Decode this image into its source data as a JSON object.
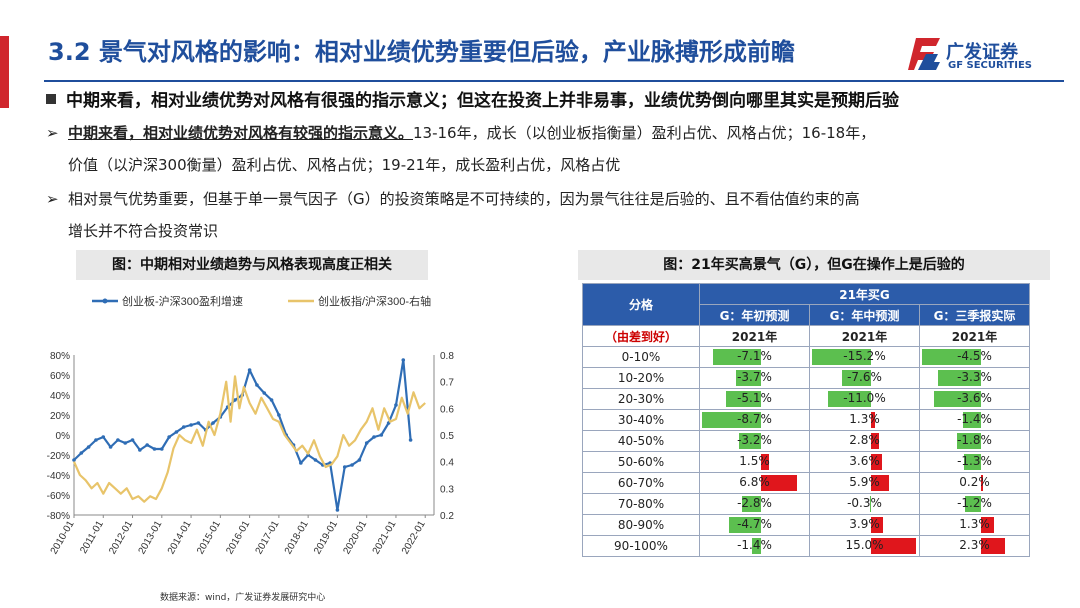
{
  "title": "3.2 景气对风格的影响：相对业绩优势重要但后验，产业脉搏形成前瞻",
  "logo": {
    "cn": "广发证券",
    "en": "GF SECURITIES"
  },
  "headline": "中期来看，相对业绩优势对风格有很强的指示意义；但这在投资上并非易事，业绩优势倒向哪里其实是预期后验",
  "point1": {
    "bold": "中期来看，相对业绩优势对风格有较强的指示意义。",
    "text1": "13-16年，成长（以创业板指衡量）盈利占优、风格占优；16-18年，",
    "text2": "价值（以沪深300衡量）盈利占优、风格占优；19-21年，成长盈利占优，风格占优"
  },
  "point2": {
    "text1": "相对景气优势重要，但基于单一景气因子（G）的投资策略是不可持续的，因为景气往往是后验的、且不看估值约束的高",
    "text2": "增长并不符合投资常识"
  },
  "left_caption": "图：中期相对业绩趋势与风格表现高度正相关",
  "right_caption": "图：21年买高景气（G），但G在操作上是后验的",
  "source": "数据来源：wind，广发证券发展研究中心",
  "colors": {
    "blue": "#2f6db5",
    "gold": "#e8c46a",
    "green": "#5cbf4f",
    "red": "#e0161c",
    "header": "#2c5caa"
  },
  "chart_data": [
    {
      "type": "line",
      "title": "",
      "legend_position": "top",
      "x_ticks": [
        "2010-01",
        "2011-01",
        "2012-01",
        "2013-01",
        "2014-01",
        "2015-01",
        "2016-01",
        "2017-01",
        "2018-01",
        "2019-01",
        "2020-01",
        "2021-01",
        "2022-01"
      ],
      "y_left_ticks": [
        "80%",
        "60%",
        "40%",
        "20%",
        "0%",
        "-20%",
        "-40%",
        "-60%",
        "-80%"
      ],
      "y_right_ticks": [
        "0.8",
        "0.7",
        "0.6",
        "0.5",
        "0.4",
        "0.3",
        "0.2"
      ],
      "ylim_left": [
        -80,
        80
      ],
      "ylim_right": [
        0.2,
        0.8
      ],
      "series": [
        {
          "name": "创业板-沪深300盈利增速",
          "axis": "left",
          "color": "#2f6db5",
          "marker": true,
          "x": [
            2010.0,
            2010.25,
            2010.5,
            2010.75,
            2011.0,
            2011.25,
            2011.5,
            2011.75,
            2012.0,
            2012.25,
            2012.5,
            2012.75,
            2013.0,
            2013.25,
            2013.5,
            2013.75,
            2014.0,
            2014.25,
            2014.5,
            2014.75,
            2015.0,
            2015.25,
            2015.5,
            2015.75,
            2016.0,
            2016.25,
            2016.5,
            2016.75,
            2017.0,
            2017.25,
            2017.5,
            2017.75,
            2018.0,
            2018.25,
            2018.5,
            2018.75,
            2019.0,
            2019.25,
            2019.5,
            2019.75,
            2020.0,
            2020.25,
            2020.5,
            2020.75,
            2021.0,
            2021.25,
            2021.5
          ],
          "y": [
            -25,
            -18,
            -12,
            -5,
            -2,
            -12,
            -5,
            -8,
            -5,
            -15,
            -10,
            -14,
            -14,
            -2,
            3,
            8,
            10,
            12,
            5,
            12,
            18,
            28,
            35,
            40,
            65,
            50,
            42,
            35,
            20,
            0,
            -10,
            -28,
            -20,
            -25,
            -30,
            -28,
            -75,
            -32,
            -30,
            -25,
            -8,
            -2,
            0,
            12,
            30,
            75,
            -5
          ]
        },
        {
          "name": "创业板指/沪深300-右轴",
          "axis": "right",
          "color": "#e8c46a",
          "marker": false,
          "x": [
            2010.0,
            2010.2,
            2010.4,
            2010.6,
            2010.8,
            2011.0,
            2011.2,
            2011.4,
            2011.6,
            2011.8,
            2012.0,
            2012.2,
            2012.4,
            2012.6,
            2012.8,
            2013.0,
            2013.2,
            2013.4,
            2013.6,
            2013.8,
            2014.0,
            2014.2,
            2014.4,
            2014.6,
            2014.8,
            2015.0,
            2015.2,
            2015.35,
            2015.5,
            2015.65,
            2015.8,
            2016.0,
            2016.2,
            2016.4,
            2016.6,
            2016.8,
            2017.0,
            2017.2,
            2017.4,
            2017.6,
            2017.8,
            2018.0,
            2018.2,
            2018.4,
            2018.6,
            2018.8,
            2019.0,
            2019.2,
            2019.4,
            2019.6,
            2019.8,
            2020.0,
            2020.2,
            2020.4,
            2020.6,
            2020.8,
            2021.0,
            2021.2,
            2021.4,
            2021.6,
            2021.8,
            2022.0
          ],
          "y": [
            0.4,
            0.35,
            0.33,
            0.3,
            0.32,
            0.28,
            0.32,
            0.3,
            0.28,
            0.3,
            0.26,
            0.27,
            0.25,
            0.27,
            0.26,
            0.3,
            0.36,
            0.45,
            0.5,
            0.48,
            0.47,
            0.52,
            0.46,
            0.55,
            0.5,
            0.58,
            0.7,
            0.55,
            0.72,
            0.6,
            0.68,
            0.62,
            0.58,
            0.64,
            0.6,
            0.56,
            0.55,
            0.5,
            0.47,
            0.44,
            0.46,
            0.43,
            0.48,
            0.42,
            0.38,
            0.39,
            0.42,
            0.5,
            0.46,
            0.48,
            0.52,
            0.55,
            0.6,
            0.52,
            0.6,
            0.55,
            0.56,
            0.64,
            0.58,
            0.66,
            0.6,
            0.62
          ]
        }
      ]
    },
    {
      "type": "table",
      "title": "21年买G",
      "corner": "分格",
      "row_header_label": "（由差到好）",
      "columns": [
        {
          "name": "G：年初预测",
          "year": "2021年"
        },
        {
          "name": "G：年中预测",
          "year": "2021年"
        },
        {
          "name": "G：三季报实际",
          "year": "2021年"
        }
      ],
      "rows": [
        {
          "label": "0-10%",
          "values": [
            -7.1,
            -15.2,
            -4.5
          ],
          "text": [
            "-7.1%",
            "-15.2%",
            "-4.5%"
          ]
        },
        {
          "label": "10-20%",
          "values": [
            -3.7,
            -7.6,
            -3.3
          ],
          "text": [
            "-3.7%",
            "-7.6%",
            "-3.3%"
          ]
        },
        {
          "label": "20-30%",
          "values": [
            -5.1,
            -11.0,
            -3.6
          ],
          "text": [
            "-5.1%",
            "-11.0%",
            "-3.6%"
          ]
        },
        {
          "label": "30-40%",
          "values": [
            -8.7,
            1.3,
            -1.4
          ],
          "text": [
            "-8.7%",
            "1.3%",
            "-1.4%"
          ]
        },
        {
          "label": "40-50%",
          "values": [
            -3.2,
            2.8,
            -1.8
          ],
          "text": [
            "-3.2%",
            "2.8%",
            "-1.8%"
          ]
        },
        {
          "label": "50-60%",
          "values": [
            1.5,
            3.6,
            -1.3
          ],
          "text": [
            "1.5%",
            "3.6%",
            "-1.3%"
          ]
        },
        {
          "label": "60-70%",
          "values": [
            6.8,
            5.9,
            0.2
          ],
          "text": [
            "6.8%",
            "5.9%",
            "0.2%"
          ]
        },
        {
          "label": "70-80%",
          "values": [
            -2.8,
            -0.3,
            -1.2
          ],
          "text": [
            "-2.8%",
            "-0.3%",
            "-1.2%"
          ]
        },
        {
          "label": "80-90%",
          "values": [
            -4.7,
            3.9,
            1.3
          ],
          "text": [
            "-4.7%",
            "3.9%",
            "1.3%"
          ]
        },
        {
          "label": "90-100%",
          "values": [
            -1.4,
            15.0,
            2.3
          ],
          "text": [
            "-1.4%",
            "15.0%",
            "2.3%"
          ]
        }
      ]
    }
  ]
}
